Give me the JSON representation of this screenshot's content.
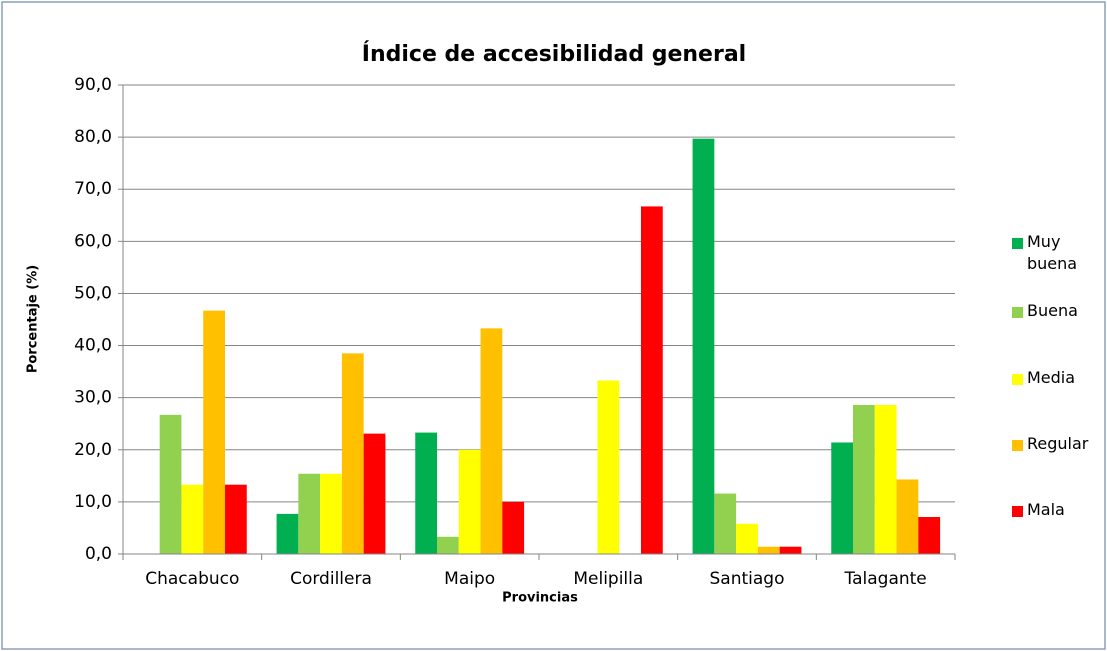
{
  "chart_data": {
    "type": "bar",
    "title": "Índice de accesibilidad general",
    "x_label": "Provincias",
    "y_label": "Porcentaje (%)",
    "categories": [
      "Chacabuco",
      "Cordillera",
      "Maipo",
      "Melipilla",
      "Santiago",
      "Talagante"
    ],
    "series": [
      {
        "name": "Muy buena",
        "color": "#00b050",
        "values": [
          0,
          7.7,
          23.3,
          0,
          79.7,
          21.4
        ]
      },
      {
        "name": "Buena",
        "color": "#92d050",
        "values": [
          26.7,
          15.4,
          3.3,
          0,
          11.6,
          28.6
        ]
      },
      {
        "name": "Media",
        "color": "#ffff00",
        "values": [
          13.3,
          15.4,
          20.0,
          33.3,
          5.8,
          28.6
        ]
      },
      {
        "name": "Regular",
        "color": "#ffc000",
        "values": [
          46.7,
          38.5,
          43.3,
          0,
          1.4,
          14.3
        ]
      },
      {
        "name": "Mala",
        "color": "#ff0000",
        "values": [
          13.3,
          23.1,
          10.0,
          66.7,
          1.4,
          7.1
        ]
      }
    ],
    "ylim": [
      0,
      90
    ],
    "yticks": [
      {
        "value": 0,
        "label": "0,0"
      },
      {
        "value": 10,
        "label": "10,0"
      },
      {
        "value": 20,
        "label": "20,0"
      },
      {
        "value": 30,
        "label": "30,0"
      },
      {
        "value": 40,
        "label": "40,0"
      },
      {
        "value": 50,
        "label": "50,0"
      },
      {
        "value": 60,
        "label": "60,0"
      },
      {
        "value": 70,
        "label": "70,0"
      },
      {
        "value": 80,
        "label": "80,0"
      },
      {
        "value": 90,
        "label": "90,0"
      }
    ],
    "grid": true,
    "legend": "right"
  }
}
